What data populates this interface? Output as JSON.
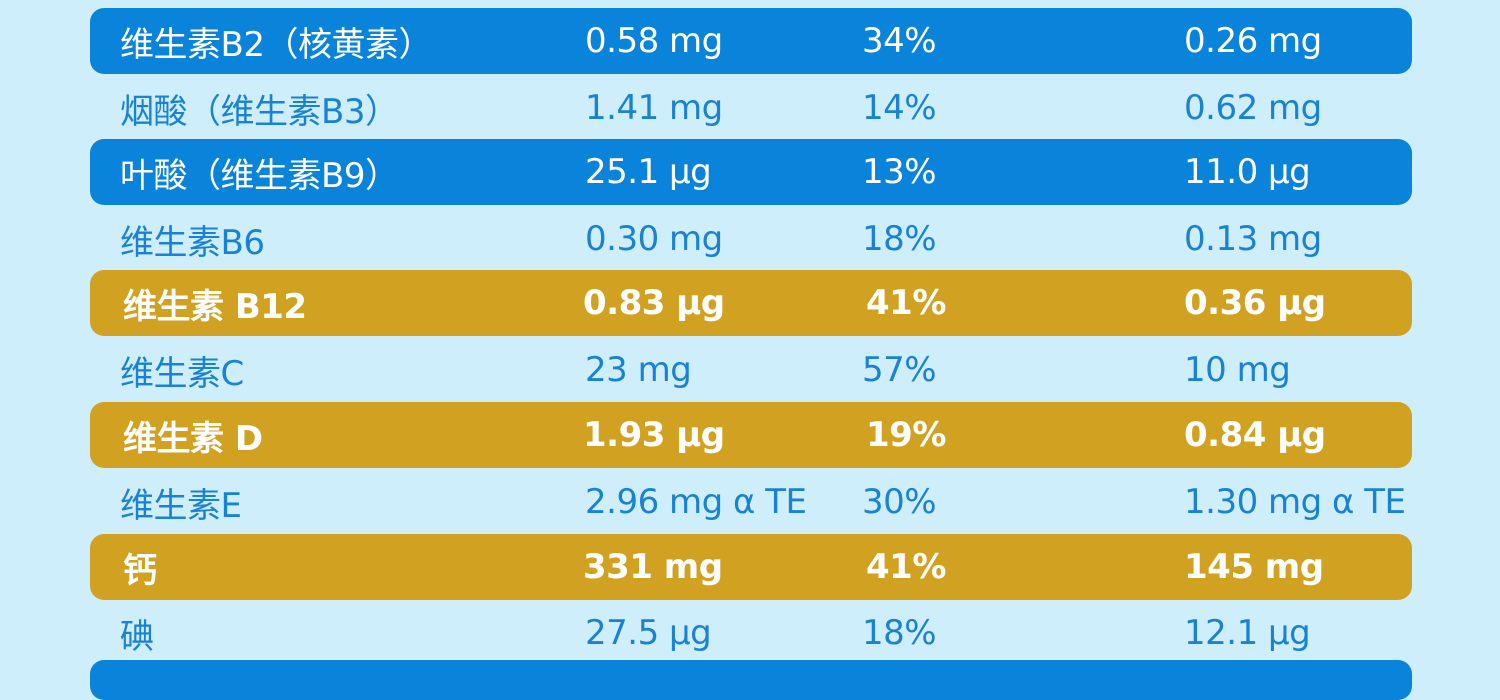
{
  "rows": [
    {
      "style": "blue",
      "name": "维生素B2（核黄素）",
      "amount": "0.58 mg",
      "percent": "34%",
      "per_unit": "0.26 mg"
    },
    {
      "style": "plain",
      "name": "烟酸（维生素B3）",
      "amount": "1.41 mg",
      "percent": "14%",
      "per_unit": "0.62 mg"
    },
    {
      "style": "blue",
      "name": "叶酸（维生素B9）",
      "amount": "25.1 μg",
      "percent": "13%",
      "per_unit": "11.0 μg"
    },
    {
      "style": "plain",
      "name": "维生素B6",
      "amount": "0.30 mg",
      "percent": "18%",
      "per_unit": "0.13 mg"
    },
    {
      "style": "gold",
      "name": "维生素 B12",
      "amount": "0.83 μg",
      "percent": "41%",
      "per_unit": "0.36 μg"
    },
    {
      "style": "plain",
      "name": "维生素C",
      "amount": "23 mg",
      "percent": "57%",
      "per_unit": "10 mg"
    },
    {
      "style": "gold",
      "name": "维生素 D",
      "amount": "1.93 μg",
      "percent": "19%",
      "per_unit": "0.84 μg"
    },
    {
      "style": "plain",
      "name": "维生素E",
      "amount": "2.96 mg α TE",
      "percent": "30%",
      "per_unit": "1.30 mg α TE"
    },
    {
      "style": "gold",
      "name": "钙",
      "amount": "331 mg",
      "percent": "41%",
      "per_unit": "145 mg"
    },
    {
      "style": "plain",
      "name": "碘",
      "amount": "27.5 μg",
      "percent": "18%",
      "per_unit": "12.1 μg"
    },
    {
      "style": "blue",
      "name": "",
      "amount": "",
      "percent": "",
      "per_unit": ""
    }
  ],
  "colors": {
    "background": "#cfeefb",
    "blue_row": "#0a83db",
    "gold_row": "#d1a222",
    "plain_text": "#1a82d4"
  }
}
